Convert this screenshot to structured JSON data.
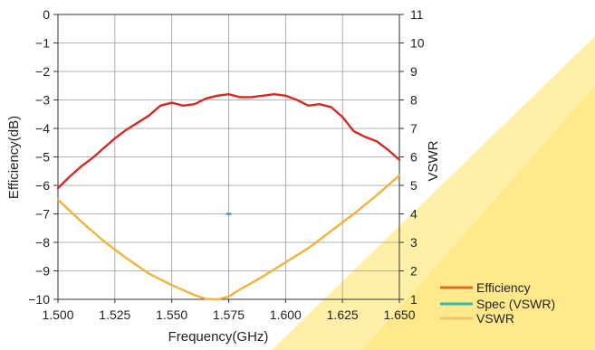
{
  "chart_data": {
    "type": "line",
    "xlabel": "Frequency(GHz)",
    "ylabel": "Efficiency(dB)",
    "y2label": "VSWR",
    "xlim": [
      1.5,
      1.65
    ],
    "ylim": [
      -10,
      0
    ],
    "y2lim": [
      1,
      11
    ],
    "x_ticks": [
      "1.500",
      "1.525",
      "1.550",
      "1.575",
      "1.600",
      "1.625",
      "1.650"
    ],
    "x_tick_values": [
      1.5,
      1.525,
      1.55,
      1.575,
      1.6,
      1.625,
      1.65
    ],
    "y_ticks": [
      "0",
      "−1",
      "−2",
      "−3",
      "−4",
      "−5",
      "−6",
      "−7",
      "−8",
      "−9",
      "−10"
    ],
    "y_tick_values": [
      0,
      -1,
      -2,
      -3,
      -4,
      -5,
      -6,
      -7,
      -8,
      -9,
      -10
    ],
    "y2_ticks": [
      "11",
      "10",
      "9",
      "8",
      "7",
      "6",
      "5",
      "4",
      "3",
      "2",
      "1"
    ],
    "y2_tick_values": [
      11,
      10,
      9,
      8,
      7,
      6,
      5,
      4,
      3,
      2,
      1
    ],
    "grid": true,
    "legend_position": "bottom-right",
    "series": [
      {
        "name": "Efficiency",
        "axis": "left",
        "color": "#d42a25",
        "x": [
          1.5,
          1.505,
          1.51,
          1.515,
          1.52,
          1.525,
          1.53,
          1.535,
          1.54,
          1.545,
          1.55,
          1.555,
          1.56,
          1.565,
          1.57,
          1.575,
          1.58,
          1.585,
          1.59,
          1.595,
          1.6,
          1.605,
          1.61,
          1.615,
          1.62,
          1.625,
          1.63,
          1.635,
          1.64,
          1.645,
          1.65
        ],
        "y": [
          -6.1,
          -5.7,
          -5.35,
          -5.05,
          -4.7,
          -4.35,
          -4.05,
          -3.8,
          -3.55,
          -3.2,
          -3.1,
          -3.2,
          -3.15,
          -2.95,
          -2.85,
          -2.8,
          -2.9,
          -2.9,
          -2.85,
          -2.8,
          -2.85,
          -3.0,
          -3.2,
          -3.15,
          -3.25,
          -3.6,
          -4.1,
          -4.3,
          -4.45,
          -4.75,
          -5.1
        ]
      },
      {
        "name": "Spec (VSWR)",
        "axis": "right",
        "color": "#2a9ed6",
        "x": [
          1.57425,
          1.57575
        ],
        "y": [
          4,
          4
        ]
      },
      {
        "name": "VSWR",
        "axis": "right",
        "color": "#f0b43a",
        "x": [
          1.5,
          1.51,
          1.52,
          1.53,
          1.54,
          1.55,
          1.56,
          1.565,
          1.57,
          1.575,
          1.58,
          1.59,
          1.6,
          1.61,
          1.62,
          1.63,
          1.64,
          1.65
        ],
        "y": [
          4.5,
          3.75,
          3.05,
          2.45,
          1.9,
          1.5,
          1.15,
          1.02,
          1.0,
          1.1,
          1.35,
          1.8,
          2.3,
          2.8,
          3.4,
          4.0,
          4.65,
          5.35
        ]
      }
    ]
  },
  "legend": {
    "efficiency_label": "Efficiency",
    "efficiency_color": "#e0682a",
    "spec_label": "Spec (VSWR)",
    "spec_color": "#37b8a8",
    "vswr_label": "VSWR",
    "vswr_color": "#f0c070"
  },
  "watermark": {
    "color": "#ffe98a"
  }
}
